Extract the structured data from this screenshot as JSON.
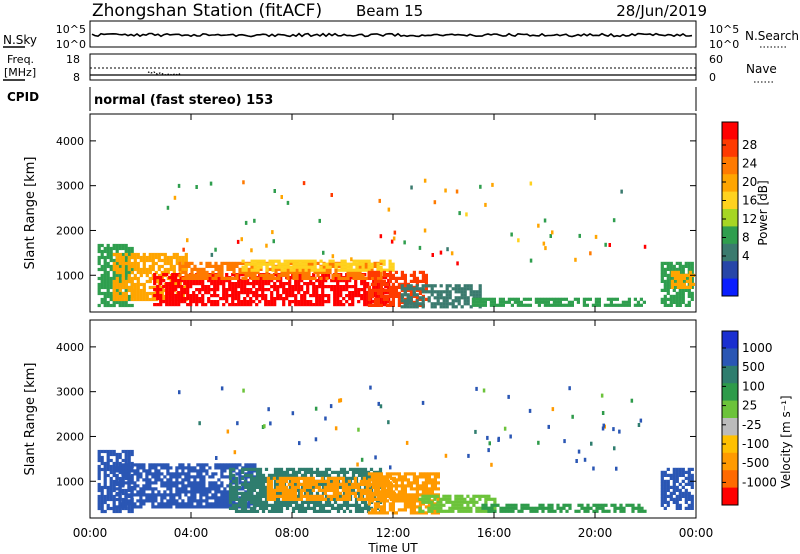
{
  "header": {
    "title": "Zhongshan Station (fitACF)",
    "beam": "Beam 15",
    "date": "28/Jun/2019"
  },
  "nsky_panel": {
    "label": "N.Sky",
    "right_label": "N.Search",
    "left_ticks": [
      "10^5",
      "10^0"
    ],
    "right_ticks": [
      "10^5",
      "10^0"
    ]
  },
  "freq_panel": {
    "label_line1": "Freq.",
    "label_line2": "[MHz]",
    "right_label": "Nave",
    "left_ticks": [
      "18",
      "8"
    ],
    "right_ticks": [
      "60",
      "0"
    ]
  },
  "cpid": {
    "label": "CPID",
    "value": "normal (fast stereo) 153"
  },
  "axes": {
    "ylabel": "Slant Range [km]",
    "yticks": [
      "4000",
      "3000",
      "2000",
      "1000"
    ],
    "xticks": [
      "00:00",
      "04:00",
      "08:00",
      "12:00",
      "16:00",
      "20:00",
      "00:00"
    ],
    "xlabel": "Time UT"
  },
  "power_colorbar": {
    "label": "Power [dB]",
    "ticks": [
      "28",
      "24",
      "20",
      "16",
      "12",
      "8",
      "4"
    ],
    "colors": [
      "#ff0000",
      "#ff3a00",
      "#ff7a00",
      "#ffa500",
      "#ffd21e",
      "#a6d624",
      "#2f9e4e",
      "#3a7a6e",
      "#2746a8",
      "#0a1eff"
    ]
  },
  "velocity_colorbar": {
    "label": "Velocity [m s⁻¹]",
    "ticks": [
      "1000",
      "500",
      "100",
      "25",
      "-25",
      "-100",
      "-500",
      "-1000"
    ],
    "colors": [
      "#1a2fd0",
      "#2a56b4",
      "#2f7d6e",
      "#2e9b4a",
      "#6cc33a",
      "#bbbbbb",
      "#ffc000",
      "#ff9a00",
      "#ff6a00",
      "#ff0000"
    ]
  },
  "chart_data": {
    "type": "heatmap",
    "x_range_hours_ut": [
      0,
      24
    ],
    "y_range_km": [
      180,
      4600
    ],
    "power_regions": [
      {
        "t0": 0.3,
        "t1": 1.7,
        "r0": 350,
        "r1": 1700,
        "color": "#2f9e4e"
      },
      {
        "t0": 0.9,
        "t1": 3.8,
        "r0": 450,
        "r1": 1500,
        "color": "#ffa500"
      },
      {
        "t0": 2.5,
        "t1": 11.8,
        "r0": 350,
        "r1": 1050,
        "color": "#ff0000"
      },
      {
        "t0": 3.5,
        "t1": 11.5,
        "r0": 900,
        "r1": 1300,
        "color": "#ff7a00"
      },
      {
        "t0": 6.0,
        "t1": 12.0,
        "r0": 1100,
        "r1": 1350,
        "color": "#ffd21e"
      },
      {
        "t0": 11.0,
        "t1": 13.3,
        "r0": 350,
        "r1": 1100,
        "color": "#ff3a00"
      },
      {
        "t0": 12.3,
        "t1": 15.5,
        "r0": 300,
        "r1": 800,
        "color": "#3a7a6e"
      },
      {
        "t0": 15.0,
        "t1": 22.0,
        "r0": 300,
        "r1": 500,
        "color": "#2f9e4e"
      },
      {
        "t0": 22.6,
        "t1": 23.9,
        "r0": 300,
        "r1": 1300,
        "color": "#2f9e4e"
      },
      {
        "t0": 23.0,
        "t1": 23.9,
        "r0": 700,
        "r1": 1100,
        "color": "#ffa500"
      }
    ],
    "velocity_regions": [
      {
        "t0": 0.3,
        "t1": 1.7,
        "r0": 350,
        "r1": 1700,
        "color": "#2a56b4"
      },
      {
        "t0": 1.0,
        "t1": 6.5,
        "r0": 400,
        "r1": 1400,
        "color": "#2a56b4"
      },
      {
        "t0": 5.5,
        "t1": 11.5,
        "r0": 350,
        "r1": 1300,
        "color": "#2f7d6e"
      },
      {
        "t0": 7.0,
        "t1": 12.0,
        "r0": 600,
        "r1": 1100,
        "color": "#ff9a00"
      },
      {
        "t0": 11.0,
        "t1": 13.8,
        "r0": 300,
        "r1": 1200,
        "color": "#ff9a00"
      },
      {
        "t0": 13.0,
        "t1": 16.0,
        "r0": 300,
        "r1": 700,
        "color": "#6cc33a"
      },
      {
        "t0": 15.5,
        "t1": 22.0,
        "r0": 300,
        "r1": 500,
        "color": "#2e9b4a"
      },
      {
        "t0": 22.6,
        "t1": 23.9,
        "r0": 400,
        "r1": 1300,
        "color": "#2a56b4"
      }
    ]
  }
}
